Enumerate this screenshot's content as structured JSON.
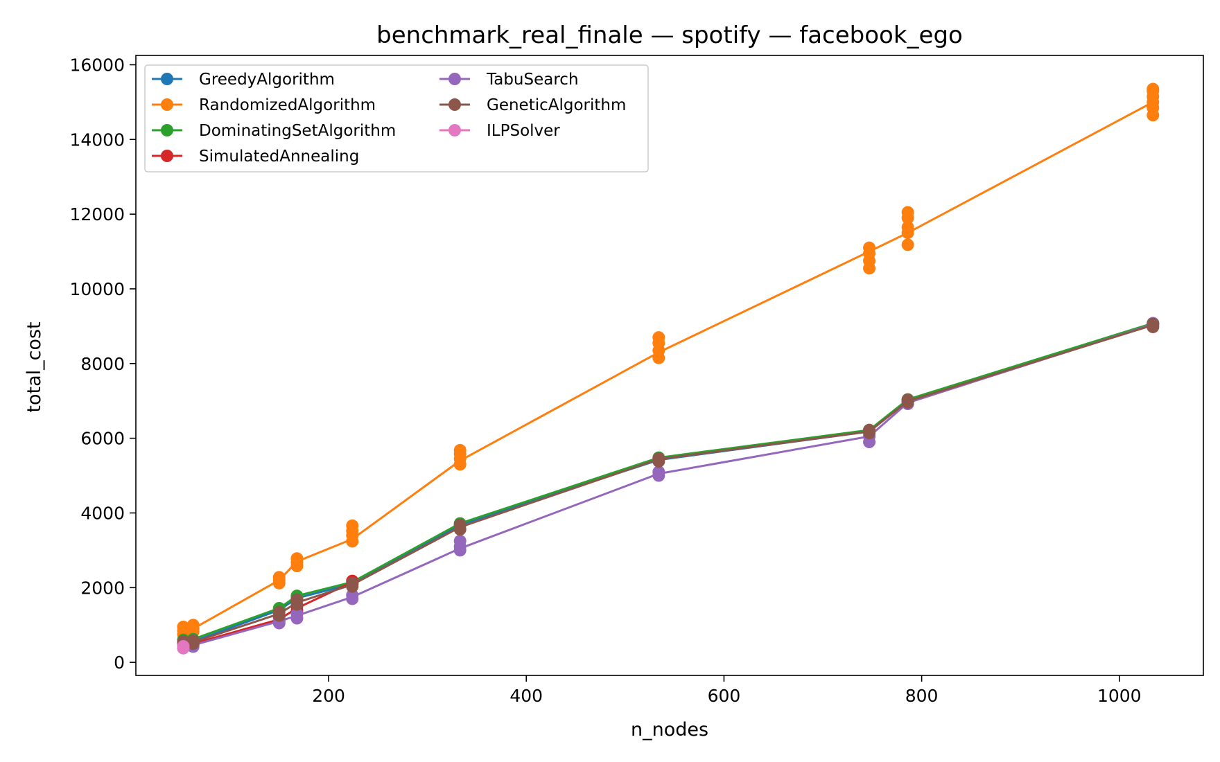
{
  "chart_data": {
    "type": "line",
    "title": "benchmark_real_finale — spotify — facebook_ego",
    "xlabel": "n_nodes",
    "ylabel": "total_cost",
    "xlim": [
      5,
      1085
    ],
    "ylim": [
      -350,
      16250
    ],
    "xticks": [
      200,
      400,
      600,
      800,
      1000
    ],
    "yticks": [
      0,
      2000,
      4000,
      6000,
      8000,
      10000,
      12000,
      14000,
      16000
    ],
    "grid": false,
    "legend_position": "top-left",
    "legend_columns": 2,
    "series": [
      {
        "name": "GreedyAlgorithm",
        "color": "#1f77b4",
        "points": [
          [
            53,
            550
          ],
          [
            63,
            560
          ],
          [
            150,
            1400
          ],
          [
            168,
            1720
          ],
          [
            224,
            2100
          ],
          [
            333,
            3680
          ],
          [
            534,
            5420
          ],
          [
            747,
            6180
          ],
          [
            786,
            7000
          ],
          [
            1034,
            9050
          ]
        ]
      },
      {
        "name": "RandomizedAlgorithm",
        "color": "#ff7f0e",
        "line": [
          [
            53,
            850
          ],
          [
            63,
            900
          ],
          [
            150,
            2200
          ],
          [
            168,
            2700
          ],
          [
            224,
            3300
          ],
          [
            333,
            5400
          ],
          [
            534,
            8300
          ],
          [
            747,
            11000
          ],
          [
            786,
            11500
          ],
          [
            1034,
            15000
          ]
        ],
        "points": [
          [
            53,
            750
          ],
          [
            53,
            850
          ],
          [
            53,
            950
          ],
          [
            63,
            820
          ],
          [
            63,
            900
          ],
          [
            63,
            1000
          ],
          [
            150,
            2120
          ],
          [
            150,
            2200
          ],
          [
            150,
            2280
          ],
          [
            168,
            2580
          ],
          [
            168,
            2680
          ],
          [
            168,
            2780
          ],
          [
            224,
            3240
          ],
          [
            224,
            3400
          ],
          [
            224,
            3520
          ],
          [
            224,
            3660
          ],
          [
            333,
            5300
          ],
          [
            333,
            5450
          ],
          [
            333,
            5580
          ],
          [
            333,
            5680
          ],
          [
            534,
            8150
          ],
          [
            534,
            8350
          ],
          [
            534,
            8550
          ],
          [
            534,
            8700
          ],
          [
            747,
            10550
          ],
          [
            747,
            10750
          ],
          [
            747,
            10950
          ],
          [
            747,
            11100
          ],
          [
            786,
            11180
          ],
          [
            786,
            11500
          ],
          [
            786,
            11650
          ],
          [
            786,
            11900
          ],
          [
            786,
            12050
          ],
          [
            1034,
            14650
          ],
          [
            1034,
            14850
          ],
          [
            1034,
            15000
          ],
          [
            1034,
            15150
          ],
          [
            1034,
            15300
          ],
          [
            1034,
            15350
          ]
        ]
      },
      {
        "name": "DominatingSetAlgorithm",
        "color": "#2ca02c",
        "points": [
          [
            53,
            600
          ],
          [
            63,
            620
          ],
          [
            150,
            1450
          ],
          [
            168,
            1780
          ],
          [
            224,
            2150
          ],
          [
            333,
            3720
          ],
          [
            534,
            5480
          ],
          [
            747,
            6220
          ],
          [
            786,
            7040
          ],
          [
            1034,
            9080
          ]
        ]
      },
      {
        "name": "SimulatedAnnealing",
        "color": "#d62728",
        "line": [
          [
            53,
            480
          ],
          [
            63,
            500
          ],
          [
            150,
            1150
          ],
          [
            168,
            1450
          ],
          [
            224,
            2150
          ]
        ],
        "points": [
          [
            53,
            450
          ],
          [
            53,
            520
          ],
          [
            63,
            480
          ],
          [
            63,
            530
          ],
          [
            150,
            1100
          ],
          [
            150,
            1200
          ],
          [
            168,
            1380
          ],
          [
            168,
            1500
          ],
          [
            224,
            2100
          ],
          [
            224,
            2180
          ]
        ]
      },
      {
        "name": "TabuSearch",
        "color": "#9467bd",
        "line": [
          [
            53,
            430
          ],
          [
            63,
            460
          ],
          [
            150,
            1100
          ],
          [
            168,
            1250
          ],
          [
            224,
            1750
          ],
          [
            333,
            3050
          ],
          [
            534,
            5050
          ],
          [
            747,
            6050
          ],
          [
            786,
            6950
          ],
          [
            1034,
            9050
          ]
        ],
        "points": [
          [
            53,
            380
          ],
          [
            53,
            450
          ],
          [
            63,
            420
          ],
          [
            63,
            480
          ],
          [
            150,
            1050
          ],
          [
            150,
            1130
          ],
          [
            168,
            1180
          ],
          [
            168,
            1300
          ],
          [
            224,
            1700
          ],
          [
            224,
            1800
          ],
          [
            333,
            3000
          ],
          [
            333,
            3100
          ],
          [
            333,
            3250
          ],
          [
            534,
            5000
          ],
          [
            534,
            5100
          ],
          [
            747,
            5900
          ],
          [
            747,
            6050
          ],
          [
            786,
            6920
          ],
          [
            786,
            7000
          ],
          [
            1034,
            9000
          ],
          [
            1034,
            9080
          ]
        ]
      },
      {
        "name": "GeneticAlgorithm",
        "color": "#8c564b",
        "line": [
          [
            53,
            520
          ],
          [
            63,
            540
          ],
          [
            150,
            1300
          ],
          [
            168,
            1600
          ],
          [
            224,
            2080
          ],
          [
            333,
            3620
          ],
          [
            534,
            5440
          ],
          [
            747,
            6180
          ],
          [
            786,
            6990
          ],
          [
            1034,
            9030
          ]
        ],
        "points": [
          [
            53,
            480
          ],
          [
            53,
            560
          ],
          [
            63,
            500
          ],
          [
            63,
            580
          ],
          [
            150,
            1250
          ],
          [
            150,
            1350
          ],
          [
            168,
            1550
          ],
          [
            168,
            1680
          ],
          [
            224,
            2030
          ],
          [
            224,
            2120
          ],
          [
            333,
            3560
          ],
          [
            333,
            3680
          ],
          [
            534,
            5380
          ],
          [
            534,
            5460
          ],
          [
            747,
            6140
          ],
          [
            747,
            6220
          ],
          [
            786,
            6960
          ],
          [
            786,
            7030
          ],
          [
            1034,
            8980
          ],
          [
            1034,
            9060
          ]
        ]
      },
      {
        "name": "ILPSolver",
        "color": "#e377c2",
        "points": [
          [
            53,
            380
          ],
          [
            53,
            430
          ]
        ]
      }
    ]
  }
}
